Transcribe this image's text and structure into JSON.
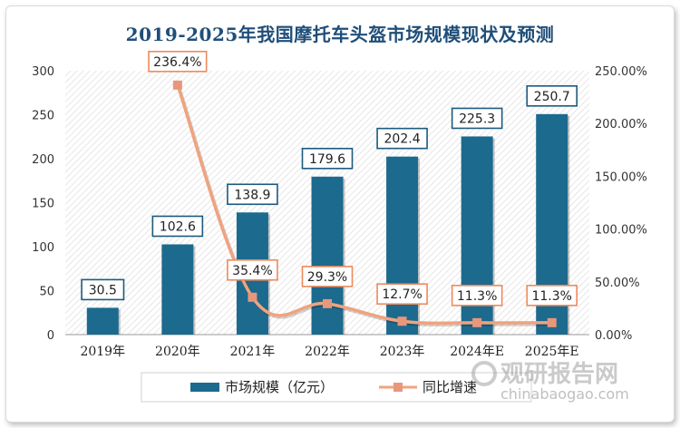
{
  "chart_data": {
    "type": "bar",
    "title": "2019-2025年我国摩托车头盔市场规模现状及预测",
    "categories": [
      "2019年",
      "2020年",
      "2021年",
      "2022年",
      "2023年",
      "2024年E",
      "2025年E"
    ],
    "series": [
      {
        "name": "市场规模（亿元）",
        "type": "bar",
        "axis": "left",
        "values": [
          30.5,
          102.6,
          138.9,
          179.6,
          202.4,
          225.3,
          250.7
        ],
        "labels": [
          "30.5",
          "102.6",
          "138.9",
          "179.6",
          "202.4",
          "225.3",
          "250.7"
        ]
      },
      {
        "name": "同比增速",
        "type": "line",
        "axis": "right",
        "values": [
          null,
          236.4,
          35.4,
          29.3,
          12.7,
          11.3,
          11.3
        ],
        "labels": [
          "",
          "236.4%",
          "35.4%",
          "29.3%",
          "12.7%",
          "11.3%",
          "11.3%"
        ]
      }
    ],
    "y_left": {
      "min": 0,
      "max": 300,
      "ticks": [
        "0",
        "50",
        "100",
        "150",
        "200",
        "250",
        "300"
      ]
    },
    "y_right": {
      "min": 0,
      "max": 250,
      "ticks": [
        "0.00%",
        "50.00%",
        "100.00%",
        "150.00%",
        "200.00%",
        "250.00%"
      ]
    },
    "legend_position": "bottom",
    "grid": false
  },
  "colors": {
    "bar": "#1c6a8e",
    "line": "#f0a37e",
    "marker": "#e8977a",
    "title": "#1f4e79",
    "label_box_bar": "#1c5a7e",
    "label_box_line": "#ed8a5c"
  },
  "watermark": {
    "brand": "观研报告网",
    "url": "chinabaogao.com"
  }
}
